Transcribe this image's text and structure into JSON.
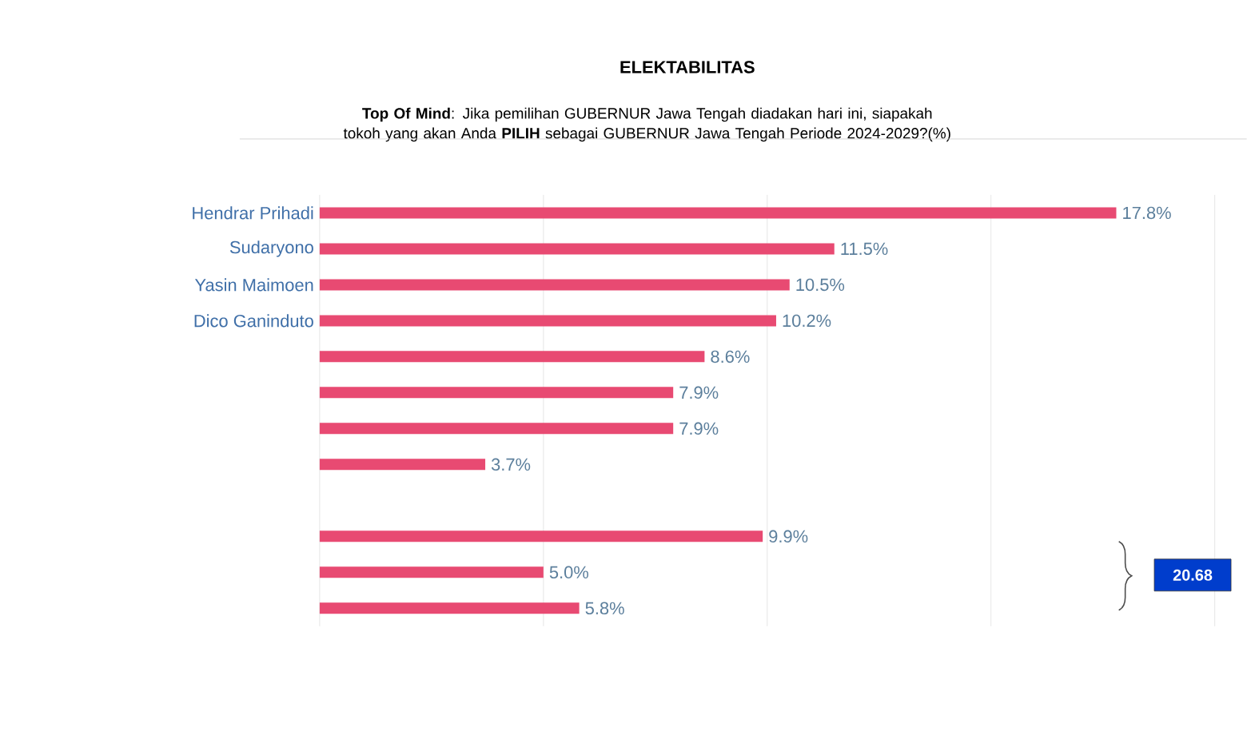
{
  "chart_data": {
    "type": "bar",
    "orientation": "horizontal",
    "title": "ELEKTABILITAS",
    "subtitle": "**Top Of Mind**: Jika pemilihan GUBERNUR Jawa Tengah diadakan hari ini, siapakah tokoh yang akan Anda **PILIH** sebagai GUBERNUR Jawa Tengah Periode 2024-2029?(%)",
    "categories": [
      "Hendrar Prihadi",
      "Sudaryono",
      "Yasin Maimoen",
      "Dico Ganinduto",
      null,
      null,
      null,
      null,
      null,
      null,
      null,
      null
    ],
    "values": [
      17.8,
      11.5,
      10.5,
      10.2,
      8.6,
      7.9,
      7.9,
      3.7,
      null,
      9.9,
      5.0,
      5.8
    ],
    "value_labels": [
      "17.8%",
      "11.5%",
      "10.5%",
      "10.2%",
      "8.6%",
      "7.9%",
      "7.9%",
      "3.7%",
      null,
      "9.9%",
      "5.0%",
      "5.8%"
    ],
    "color": "#e84a72",
    "xlim": [
      0,
      20
    ],
    "xticks": [
      {
        "value": 0,
        "label": null
      },
      {
        "value": 5,
        "label": null
      },
      {
        "value": 10,
        "label": null
      },
      {
        "value": 15,
        "label": null
      },
      {
        "value": 20,
        "label": null
      }
    ],
    "grid": "x",
    "tick_labels": "y",
    "legend": false,
    "annotations": [
      "20.68"
    ]
  }
}
